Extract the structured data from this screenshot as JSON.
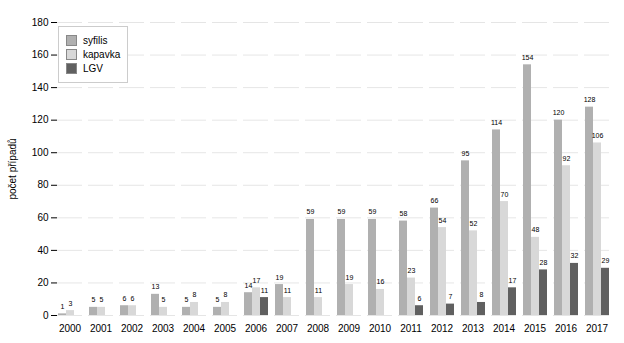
{
  "chart_data": {
    "type": "bar",
    "ylabel": "počet případů",
    "categories": [
      "2000",
      "2001",
      "2002",
      "2003",
      "2004",
      "2005",
      "2006",
      "2007",
      "2008",
      "2009",
      "2010",
      "2011",
      "2012",
      "2013",
      "2014",
      "2015",
      "2016",
      "2017"
    ],
    "series": [
      {
        "name": "syfilis",
        "color": "#b0b0b0",
        "values": [
          1,
          5,
          6,
          13,
          5,
          5,
          14,
          19,
          59,
          59,
          59,
          58,
          66,
          95,
          114,
          154,
          120,
          128
        ]
      },
      {
        "name": "kapavka",
        "color": "#d8d8d8",
        "values": [
          3,
          5,
          6,
          5,
          8,
          8,
          17,
          11,
          11,
          19,
          16,
          23,
          54,
          52,
          70,
          48,
          92,
          106
        ]
      },
      {
        "name": "LGV",
        "color": "#606060",
        "values": [
          0,
          0,
          0,
          0,
          0,
          0,
          11,
          0,
          0,
          0,
          0,
          6,
          7,
          8,
          17,
          28,
          32,
          29
        ],
        "value_labels": [
          null,
          null,
          null,
          null,
          null,
          null,
          "11",
          null,
          null,
          null,
          null,
          "6",
          "7",
          "8",
          "17",
          "28",
          "32",
          "29"
        ]
      }
    ],
    "ylim": [
      0,
      180
    ],
    "yticks": [
      0,
      20,
      40,
      60,
      80,
      100,
      120,
      140,
      160,
      180
    ],
    "grid": true,
    "legend": "upper left",
    "data_labels": true
  }
}
